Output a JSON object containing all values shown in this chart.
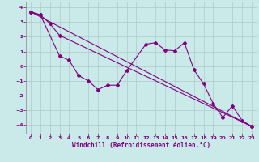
{
  "xlabel": "Windchill (Refroidissement éolien,°C)",
  "background_color": "#caeaea",
  "line_color": "#800080",
  "xlim": [
    -0.5,
    23.5
  ],
  "ylim": [
    -4.6,
    4.4
  ],
  "yticks": [
    -4,
    -3,
    -2,
    -1,
    0,
    1,
    2,
    3,
    4
  ],
  "xticks": [
    0,
    1,
    2,
    3,
    4,
    5,
    6,
    7,
    8,
    9,
    10,
    11,
    12,
    13,
    14,
    15,
    16,
    17,
    18,
    19,
    20,
    21,
    22,
    23
  ],
  "series1_x": [
    0,
    1,
    3,
    4,
    5,
    6,
    7,
    8,
    9,
    10,
    12,
    13,
    14,
    15,
    16,
    17,
    18,
    19,
    20,
    21,
    22,
    23
  ],
  "series1_y": [
    3.7,
    3.5,
    0.7,
    0.4,
    -0.65,
    -1.0,
    -1.6,
    -1.3,
    -1.3,
    -0.3,
    1.5,
    1.6,
    1.1,
    1.05,
    1.6,
    -0.25,
    -1.2,
    -2.55,
    -3.5,
    -2.7,
    -3.7,
    -4.1
  ],
  "series2_x": [
    0,
    1,
    2,
    3,
    23
  ],
  "series2_y": [
    3.7,
    3.5,
    2.9,
    2.1,
    -4.1
  ],
  "series3_x": [
    0,
    23
  ],
  "series3_y": [
    3.7,
    -4.1
  ],
  "marker_size": 2,
  "line_width": 0.8,
  "grid_color": "#b0c8c8",
  "font_color": "#800080",
  "tick_fontsize": 4.5,
  "label_fontsize": 5.5
}
